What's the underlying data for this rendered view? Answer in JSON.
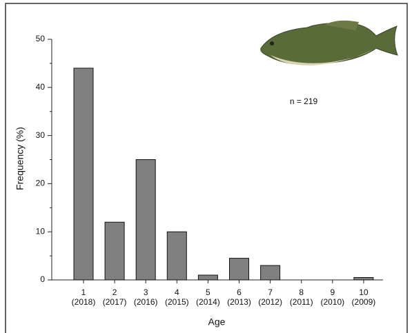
{
  "chart_data": {
    "type": "bar",
    "x_label": "Age",
    "y_label": "Frequency (%)",
    "annotation": "n = 219",
    "categories": [
      "1",
      "2",
      "3",
      "4",
      "5",
      "6",
      "7",
      "8",
      "9",
      "10"
    ],
    "category_years": [
      "(2018)",
      "(2017)",
      "(2016)",
      "(2015)",
      "(2014)",
      "(2013)",
      "(2012)",
      "(2011)",
      "(2010)",
      "(2009)"
    ],
    "values": [
      44,
      12,
      25,
      10,
      1,
      4.5,
      3,
      0,
      0,
      0.5
    ],
    "color": "#808080",
    "ylim": [
      0,
      50
    ],
    "yticks": [
      0,
      10,
      20,
      30,
      40,
      50
    ],
    "yminor_ticks": [
      5,
      15,
      25,
      35,
      45
    ]
  }
}
